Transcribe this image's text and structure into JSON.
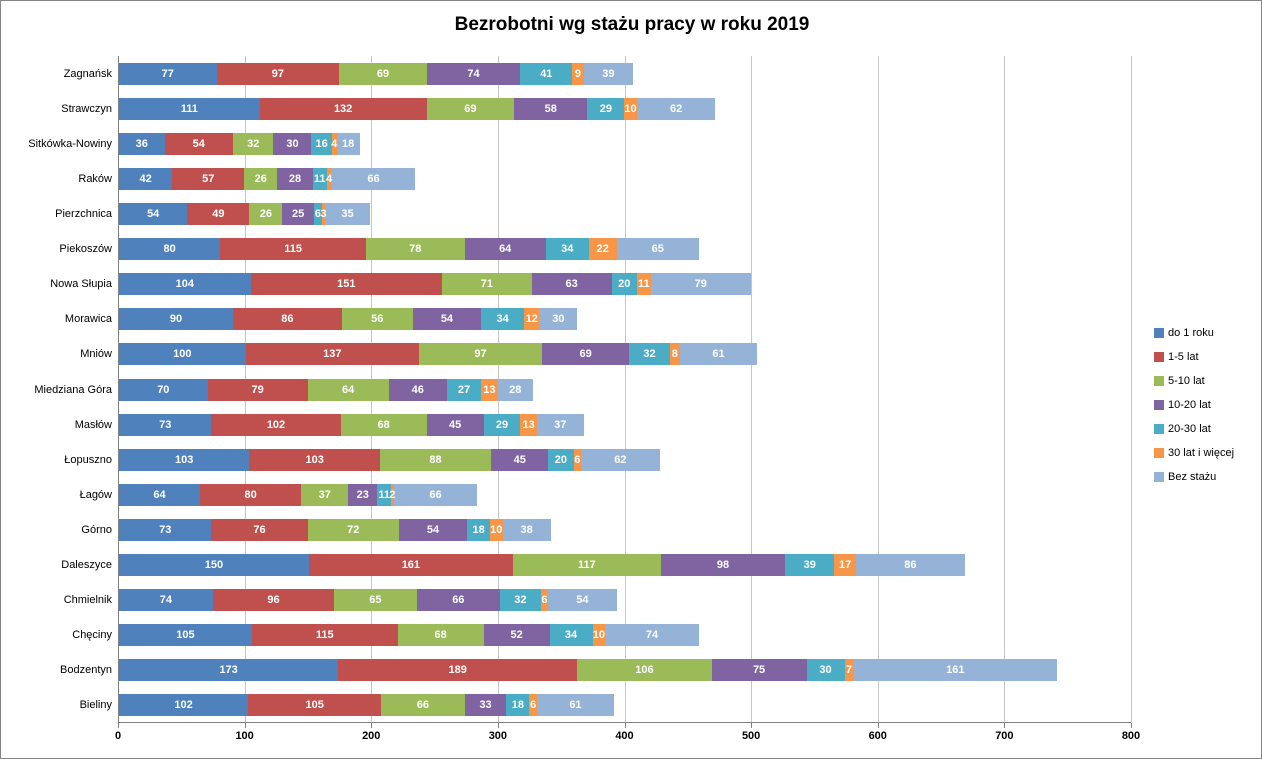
{
  "chart_data": {
    "type": "bar",
    "subtype": "horizontal-stacked",
    "title": "Bezrobotni wg stażu pracy w roku 2019",
    "xlabel": "",
    "ylabel": "",
    "xlim": [
      0,
      800
    ],
    "x_ticks": [
      0,
      100,
      200,
      300,
      400,
      500,
      600,
      700,
      800
    ],
    "grid": true,
    "legend_position": "right",
    "categories": [
      "Zagnańsk",
      "Strawczyn",
      "Sitkówka-Nowiny",
      "Raków",
      "Pierzchnica",
      "Piekoszów",
      "Nowa Słupia",
      "Morawica",
      "Mniów",
      "Miedziana Góra",
      "Masłów",
      "Łopuszno",
      "Łagów",
      "Górno",
      "Daleszyce",
      "Chmielnik",
      "Chęciny",
      "Bodzentyn",
      "Bieliny"
    ],
    "series": [
      {
        "name": "do 1 roku",
        "color": "#4F81BD",
        "values": [
          77,
          111,
          36,
          42,
          54,
          80,
          104,
          90,
          100,
          70,
          73,
          103,
          64,
          73,
          150,
          74,
          105,
          173,
          102
        ]
      },
      {
        "name": "1-5 lat",
        "color": "#C0504D",
        "values": [
          97,
          132,
          54,
          57,
          49,
          115,
          151,
          86,
          137,
          79,
          102,
          103,
          80,
          76,
          161,
          96,
          115,
          189,
          105
        ]
      },
      {
        "name": "5-10 lat",
        "color": "#9BBB59",
        "values": [
          69,
          69,
          32,
          26,
          26,
          78,
          71,
          56,
          97,
          64,
          68,
          88,
          37,
          72,
          117,
          65,
          68,
          106,
          66
        ]
      },
      {
        "name": "10-20 lat",
        "color": "#8064A2",
        "values": [
          74,
          58,
          30,
          28,
          25,
          64,
          63,
          54,
          69,
          46,
          45,
          45,
          23,
          54,
          98,
          66,
          52,
          75,
          33
        ]
      },
      {
        "name": "20-30 lat",
        "color": "#4BACC6",
        "values": [
          41,
          29,
          16,
          11,
          6,
          34,
          20,
          34,
          32,
          27,
          29,
          20,
          11,
          18,
          39,
          32,
          34,
          30,
          18
        ]
      },
      {
        "name": "30 lat i więcej",
        "color": "#F79646",
        "values": [
          9,
          10,
          4,
          4,
          3,
          22,
          11,
          12,
          8,
          13,
          13,
          6,
          2,
          10,
          17,
          6,
          10,
          7,
          6
        ]
      },
      {
        "name": "Bez stażu",
        "color": "#95B3D7",
        "values": [
          39,
          62,
          18,
          66,
          35,
          65,
          79,
          30,
          61,
          28,
          37,
          62,
          66,
          38,
          86,
          54,
          74,
          161,
          61
        ]
      }
    ]
  }
}
